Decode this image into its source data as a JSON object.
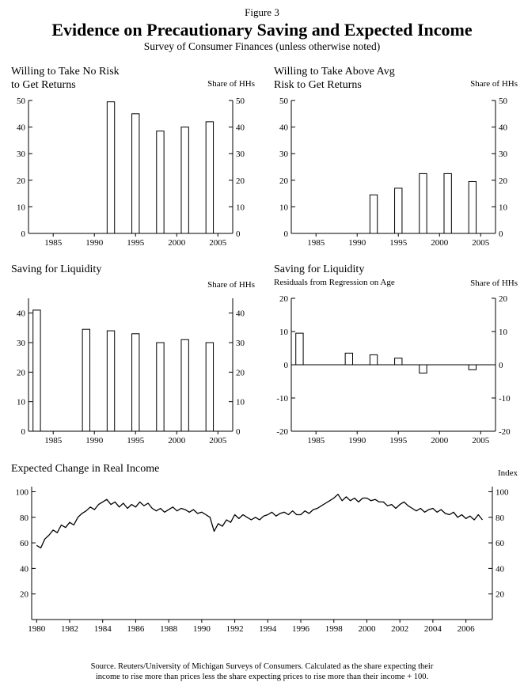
{
  "header": {
    "figure_label": "Figure 3",
    "title": "Evidence on Precautionary Saving and Expected Income",
    "subtitle": "Survey of Consumer Finances (unless otherwise noted)"
  },
  "footer": {
    "line1": "Source.  Reuters/University of Michigan Surveys of Consumers.  Calculated as the share expecting their",
    "line2": "income to rise more than prices less the share expecting prices to rise more than their income + 100."
  },
  "chart_data": [
    {
      "id": "willing-no-risk",
      "type": "bar",
      "title_lines": [
        "Willing to Take No Risk",
        "to Get Returns"
      ],
      "unit_label": "Share of HHs",
      "x": [
        1992,
        1995,
        1998,
        2001,
        2004
      ],
      "values": [
        49.5,
        45,
        38.5,
        40,
        42
      ],
      "xlim": [
        1982,
        2006.8
      ],
      "xticks": [
        1985,
        1990,
        1995,
        2000,
        2005
      ],
      "ylim": [
        0,
        50
      ],
      "yticks": [
        0,
        10,
        20,
        30,
        40,
        50
      ],
      "bar_width_years": 0.9,
      "legend": "none",
      "grid": false
    },
    {
      "id": "willing-above-avg-risk",
      "type": "bar",
      "title_lines": [
        "Willing to Take Above Avg",
        "Risk to Get Returns"
      ],
      "unit_label": "Share of HHs",
      "x": [
        1992,
        1995,
        1998,
        2001,
        2004
      ],
      "values": [
        14.5,
        17,
        22.5,
        22.5,
        19.5
      ],
      "xlim": [
        1982,
        2006.8
      ],
      "xticks": [
        1985,
        1990,
        1995,
        2000,
        2005
      ],
      "ylim": [
        0,
        50
      ],
      "yticks": [
        0,
        10,
        20,
        30,
        40,
        50
      ],
      "bar_width_years": 0.9,
      "legend": "none",
      "grid": false
    },
    {
      "id": "saving-for-liquidity",
      "type": "bar",
      "title_lines": [
        "Saving for Liquidity"
      ],
      "unit_label": "Share of HHs",
      "x": [
        1983,
        1989,
        1992,
        1995,
        1998,
        2001,
        2004
      ],
      "values": [
        41,
        34.5,
        34,
        33,
        30,
        31,
        30
      ],
      "xlim": [
        1982,
        2006.8
      ],
      "xticks": [
        1985,
        1990,
        1995,
        2000,
        2005
      ],
      "ylim": [
        0,
        45
      ],
      "yticks": [
        0,
        10,
        20,
        30,
        40
      ],
      "bar_width_years": 0.9,
      "legend": "none",
      "grid": false
    },
    {
      "id": "saving-for-liquidity-residuals",
      "type": "bar",
      "title_lines": [
        "Saving for Liquidity"
      ],
      "subtitle": "Residuals from Regression on Age",
      "unit_label": "Share of HHs",
      "x": [
        1983,
        1989,
        1992,
        1995,
        1998,
        2001,
        2004
      ],
      "values": [
        9.5,
        3.5,
        3,
        2,
        -2.5,
        0,
        -1.5
      ],
      "xlim": [
        1982,
        2006.8
      ],
      "xticks": [
        1985,
        1990,
        1995,
        2000,
        2005
      ],
      "ylim": [
        -20,
        20
      ],
      "yticks": [
        -20,
        -10,
        0,
        10,
        20
      ],
      "zero_line": true,
      "bar_width_years": 0.9,
      "legend": "none",
      "grid": false
    },
    {
      "id": "expected-change-real-income",
      "type": "line",
      "title_lines": [
        "Expected Change in Real Income"
      ],
      "unit_label": "Index",
      "x_start": 1980,
      "x_step": 0.25,
      "values": [
        58,
        56,
        63,
        66,
        70,
        68,
        74,
        72,
        76,
        74,
        80,
        83,
        85,
        88,
        86,
        90,
        92,
        94,
        90,
        92,
        88,
        91,
        87,
        90,
        88,
        92,
        89,
        91,
        87,
        85,
        87,
        84,
        86,
        88,
        85,
        87,
        86,
        84,
        86,
        83,
        84,
        82,
        80,
        69,
        75,
        73,
        78,
        76,
        82,
        79,
        82,
        80,
        78,
        80,
        78,
        81,
        82,
        84,
        81,
        83,
        84,
        82,
        85,
        82,
        82,
        85,
        83,
        86,
        87,
        89,
        91,
        93,
        95,
        98,
        93,
        96,
        93,
        95,
        92,
        95,
        95,
        93,
        94,
        92,
        92,
        89,
        90,
        87,
        90,
        92,
        89,
        87,
        85,
        87,
        84,
        86,
        87,
        84,
        86,
        83,
        82,
        84,
        80,
        82,
        79,
        81,
        78,
        82,
        78
      ],
      "xlim": [
        1979.7,
        2007.6
      ],
      "xticks": [
        1980,
        1982,
        1984,
        1986,
        1988,
        1990,
        1992,
        1994,
        1996,
        1998,
        2000,
        2002,
        2004,
        2006
      ],
      "ylim": [
        0,
        104
      ],
      "yticks": [
        20,
        40,
        60,
        80,
        100
      ],
      "legend": "none",
      "grid": false
    }
  ]
}
